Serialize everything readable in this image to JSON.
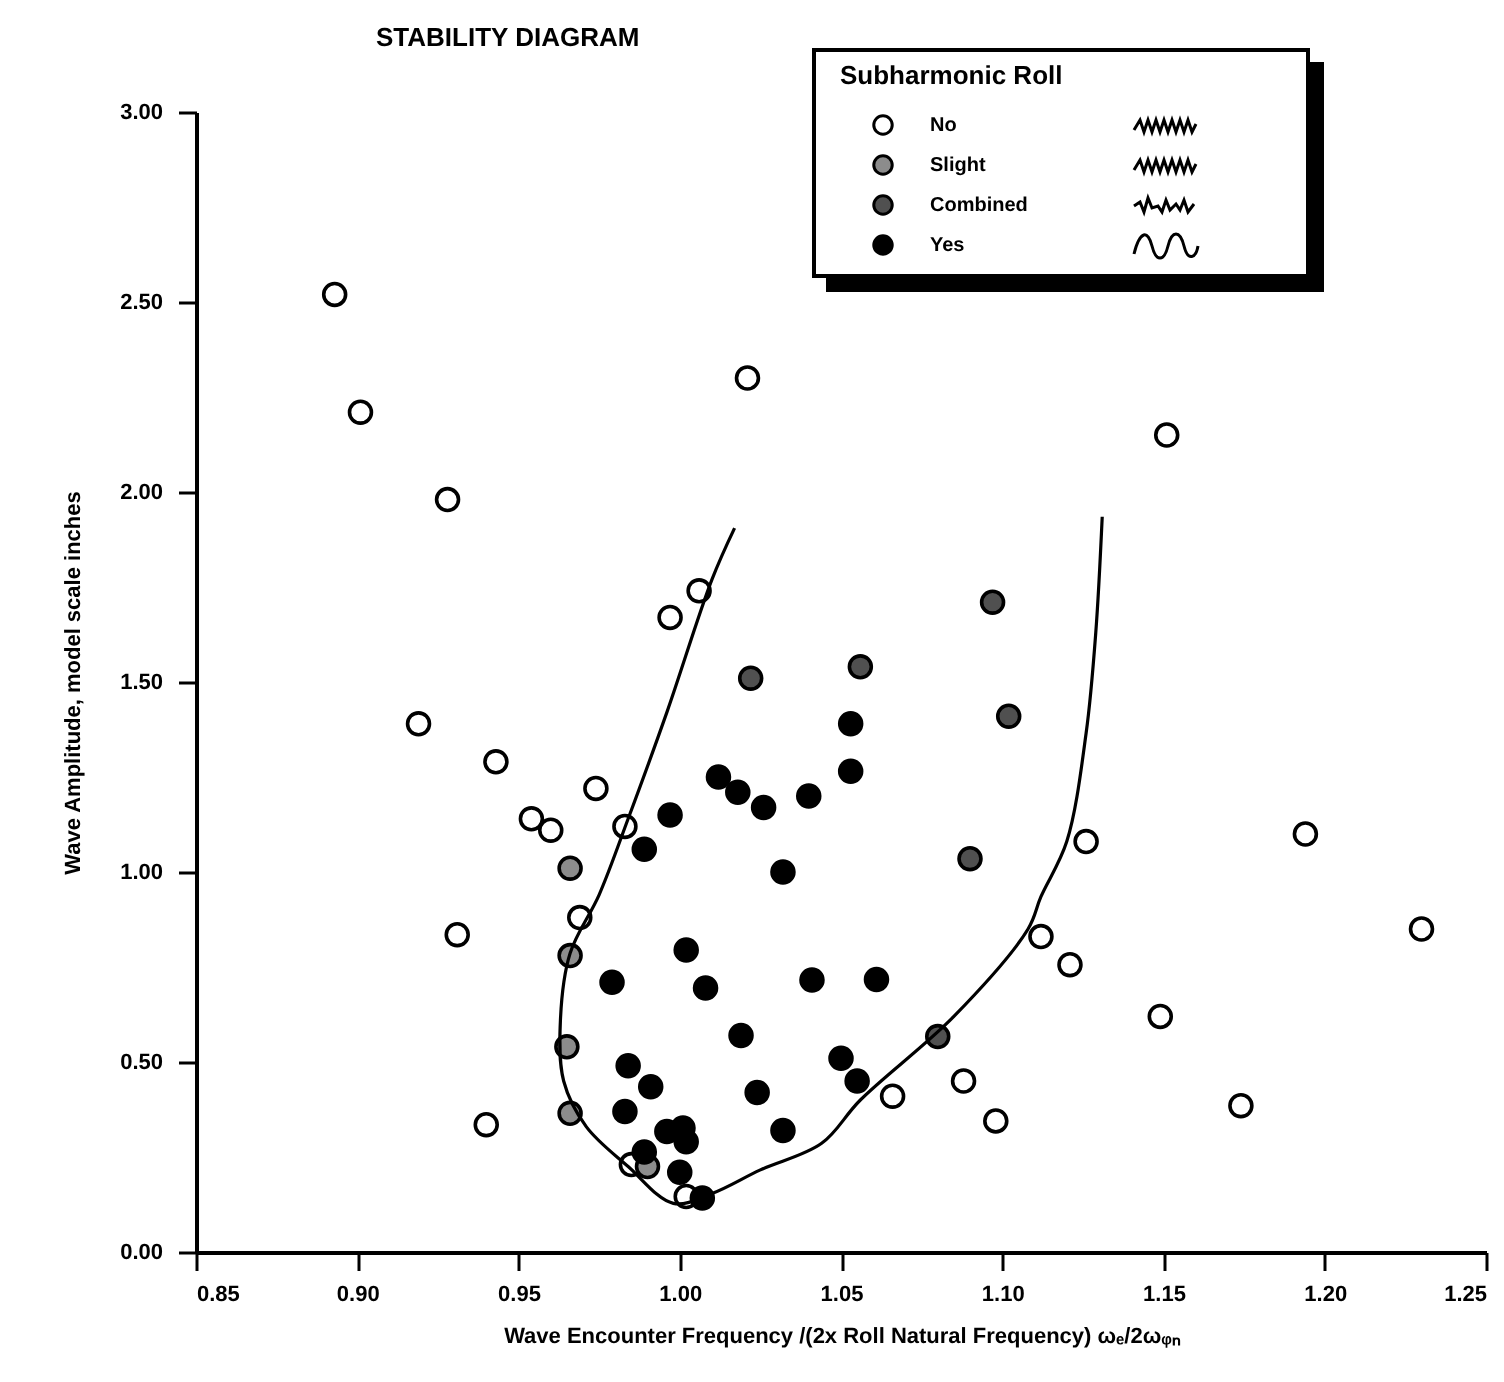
{
  "chart_data": {
    "type": "scatter",
    "title": "STABILITY DIAGRAM",
    "xlabel": "Wave Encounter Frequency /(2x Roll Natural Frequency)  ωₑ/2ωᵩₙ",
    "ylabel": "Wave Amplitude,  model scale inches",
    "legend_title": "Subharmonic Roll",
    "legend": "top right",
    "marker": "circle",
    "grid": false,
    "xlim": [
      0.85,
      1.25
    ],
    "xticks": [
      {
        "value": 0.85,
        "label": "0.85"
      },
      {
        "value": 0.9,
        "label": "0.90"
      },
      {
        "value": 0.95,
        "label": "0.95"
      },
      {
        "value": 1.0,
        "label": "1.00"
      },
      {
        "value": 1.05,
        "label": "1.05"
      },
      {
        "value": 1.1,
        "label": "1.10"
      },
      {
        "value": 1.15,
        "label": "1.15"
      },
      {
        "value": 1.2,
        "label": "1.20"
      },
      {
        "value": 1.25,
        "label": "1.25"
      }
    ],
    "ylim": [
      0,
      3
    ],
    "yticks": [
      {
        "value": 0,
        "label": "0.00"
      },
      {
        "value": 0.5,
        "label": "0.50"
      },
      {
        "value": 1,
        "label": "1.00"
      },
      {
        "value": 1.5,
        "label": "1.50"
      },
      {
        "value": 2,
        "label": "2.00"
      },
      {
        "value": 2.5,
        "label": "2.50"
      },
      {
        "value": 3,
        "label": "3.00"
      }
    ],
    "series": [
      {
        "name": "No",
        "color": "#ffffff",
        "x": [
          0.893,
          0.901,
          0.928,
          1.021,
          1.006,
          0.997,
          0.919,
          0.943,
          0.974,
          0.954,
          0.96,
          0.983,
          0.969,
          0.931,
          0.94,
          0.985,
          1.002,
          1.151,
          1.126,
          1.194,
          1.23,
          1.112,
          1.121,
          1.149,
          1.066,
          1.088,
          1.098,
          1.174
        ],
        "values": [
          2.52,
          2.21,
          1.98,
          2.3,
          1.74,
          1.67,
          1.39,
          1.29,
          1.22,
          1.14,
          1.11,
          1.12,
          0.88,
          0.835,
          0.335,
          0.23,
          0.146,
          2.15,
          1.08,
          1.1,
          0.85,
          0.83,
          0.756,
          0.62,
          0.41,
          0.45,
          0.345,
          0.385
        ]
      },
      {
        "name": "Slight",
        "color": "#8c8c8c",
        "x": [
          0.966,
          0.966,
          0.965,
          0.966,
          0.99
        ],
        "values": [
          1.01,
          0.78,
          0.54,
          0.365,
          0.225
        ]
      },
      {
        "name": "Combined",
        "color": "#505050",
        "x": [
          1.022,
          1.097,
          1.056,
          1.102,
          1.09,
          1.08
        ],
        "values": [
          1.51,
          1.71,
          1.54,
          1.41,
          1.035,
          0.567
        ]
      },
      {
        "name": "Yes",
        "color": "#000000",
        "x": [
          1.012,
          1.018,
          1.026,
          1.04,
          0.997,
          0.989,
          1.032,
          1.053,
          1.053,
          1.002,
          0.979,
          1.008,
          1.041,
          1.061,
          1.019,
          0.984,
          0.991,
          1.024,
          0.983,
          1.032,
          0.996,
          1.001,
          1.002,
          0.989,
          1.0,
          1.007,
          1.05,
          1.055
        ],
        "values": [
          1.25,
          1.21,
          1.17,
          1.2,
          1.15,
          1.06,
          1.0,
          1.39,
          1.265,
          0.795,
          0.71,
          0.695,
          0.716,
          0.717,
          0.57,
          0.49,
          0.435,
          0.42,
          0.37,
          0.32,
          0.317,
          0.326,
          0.29,
          0.263,
          0.21,
          0.142,
          0.51,
          0.45
        ]
      },
      {
        "type": "line",
        "color": "#000000",
        "marker": "none",
        "line_style": "solid",
        "x": [
          1.017,
          1.01,
          0.996,
          0.984,
          0.975,
          0.966,
          0.963,
          0.964,
          0.971,
          0.984,
          0.998,
          1.01,
          1.025,
          1.044,
          1.056,
          1.085,
          1.108,
          1.112,
          1.12,
          1.126,
          1.129,
          1.131
        ],
        "values": [
          1.905,
          1.77,
          1.42,
          1.14,
          0.94,
          0.786,
          0.61,
          0.45,
          0.33,
          0.225,
          0.128,
          0.154,
          0.216,
          0.286,
          0.4,
          0.62,
          0.85,
          0.935,
          1.08,
          1.365,
          1.63,
          1.935
        ]
      }
    ]
  }
}
